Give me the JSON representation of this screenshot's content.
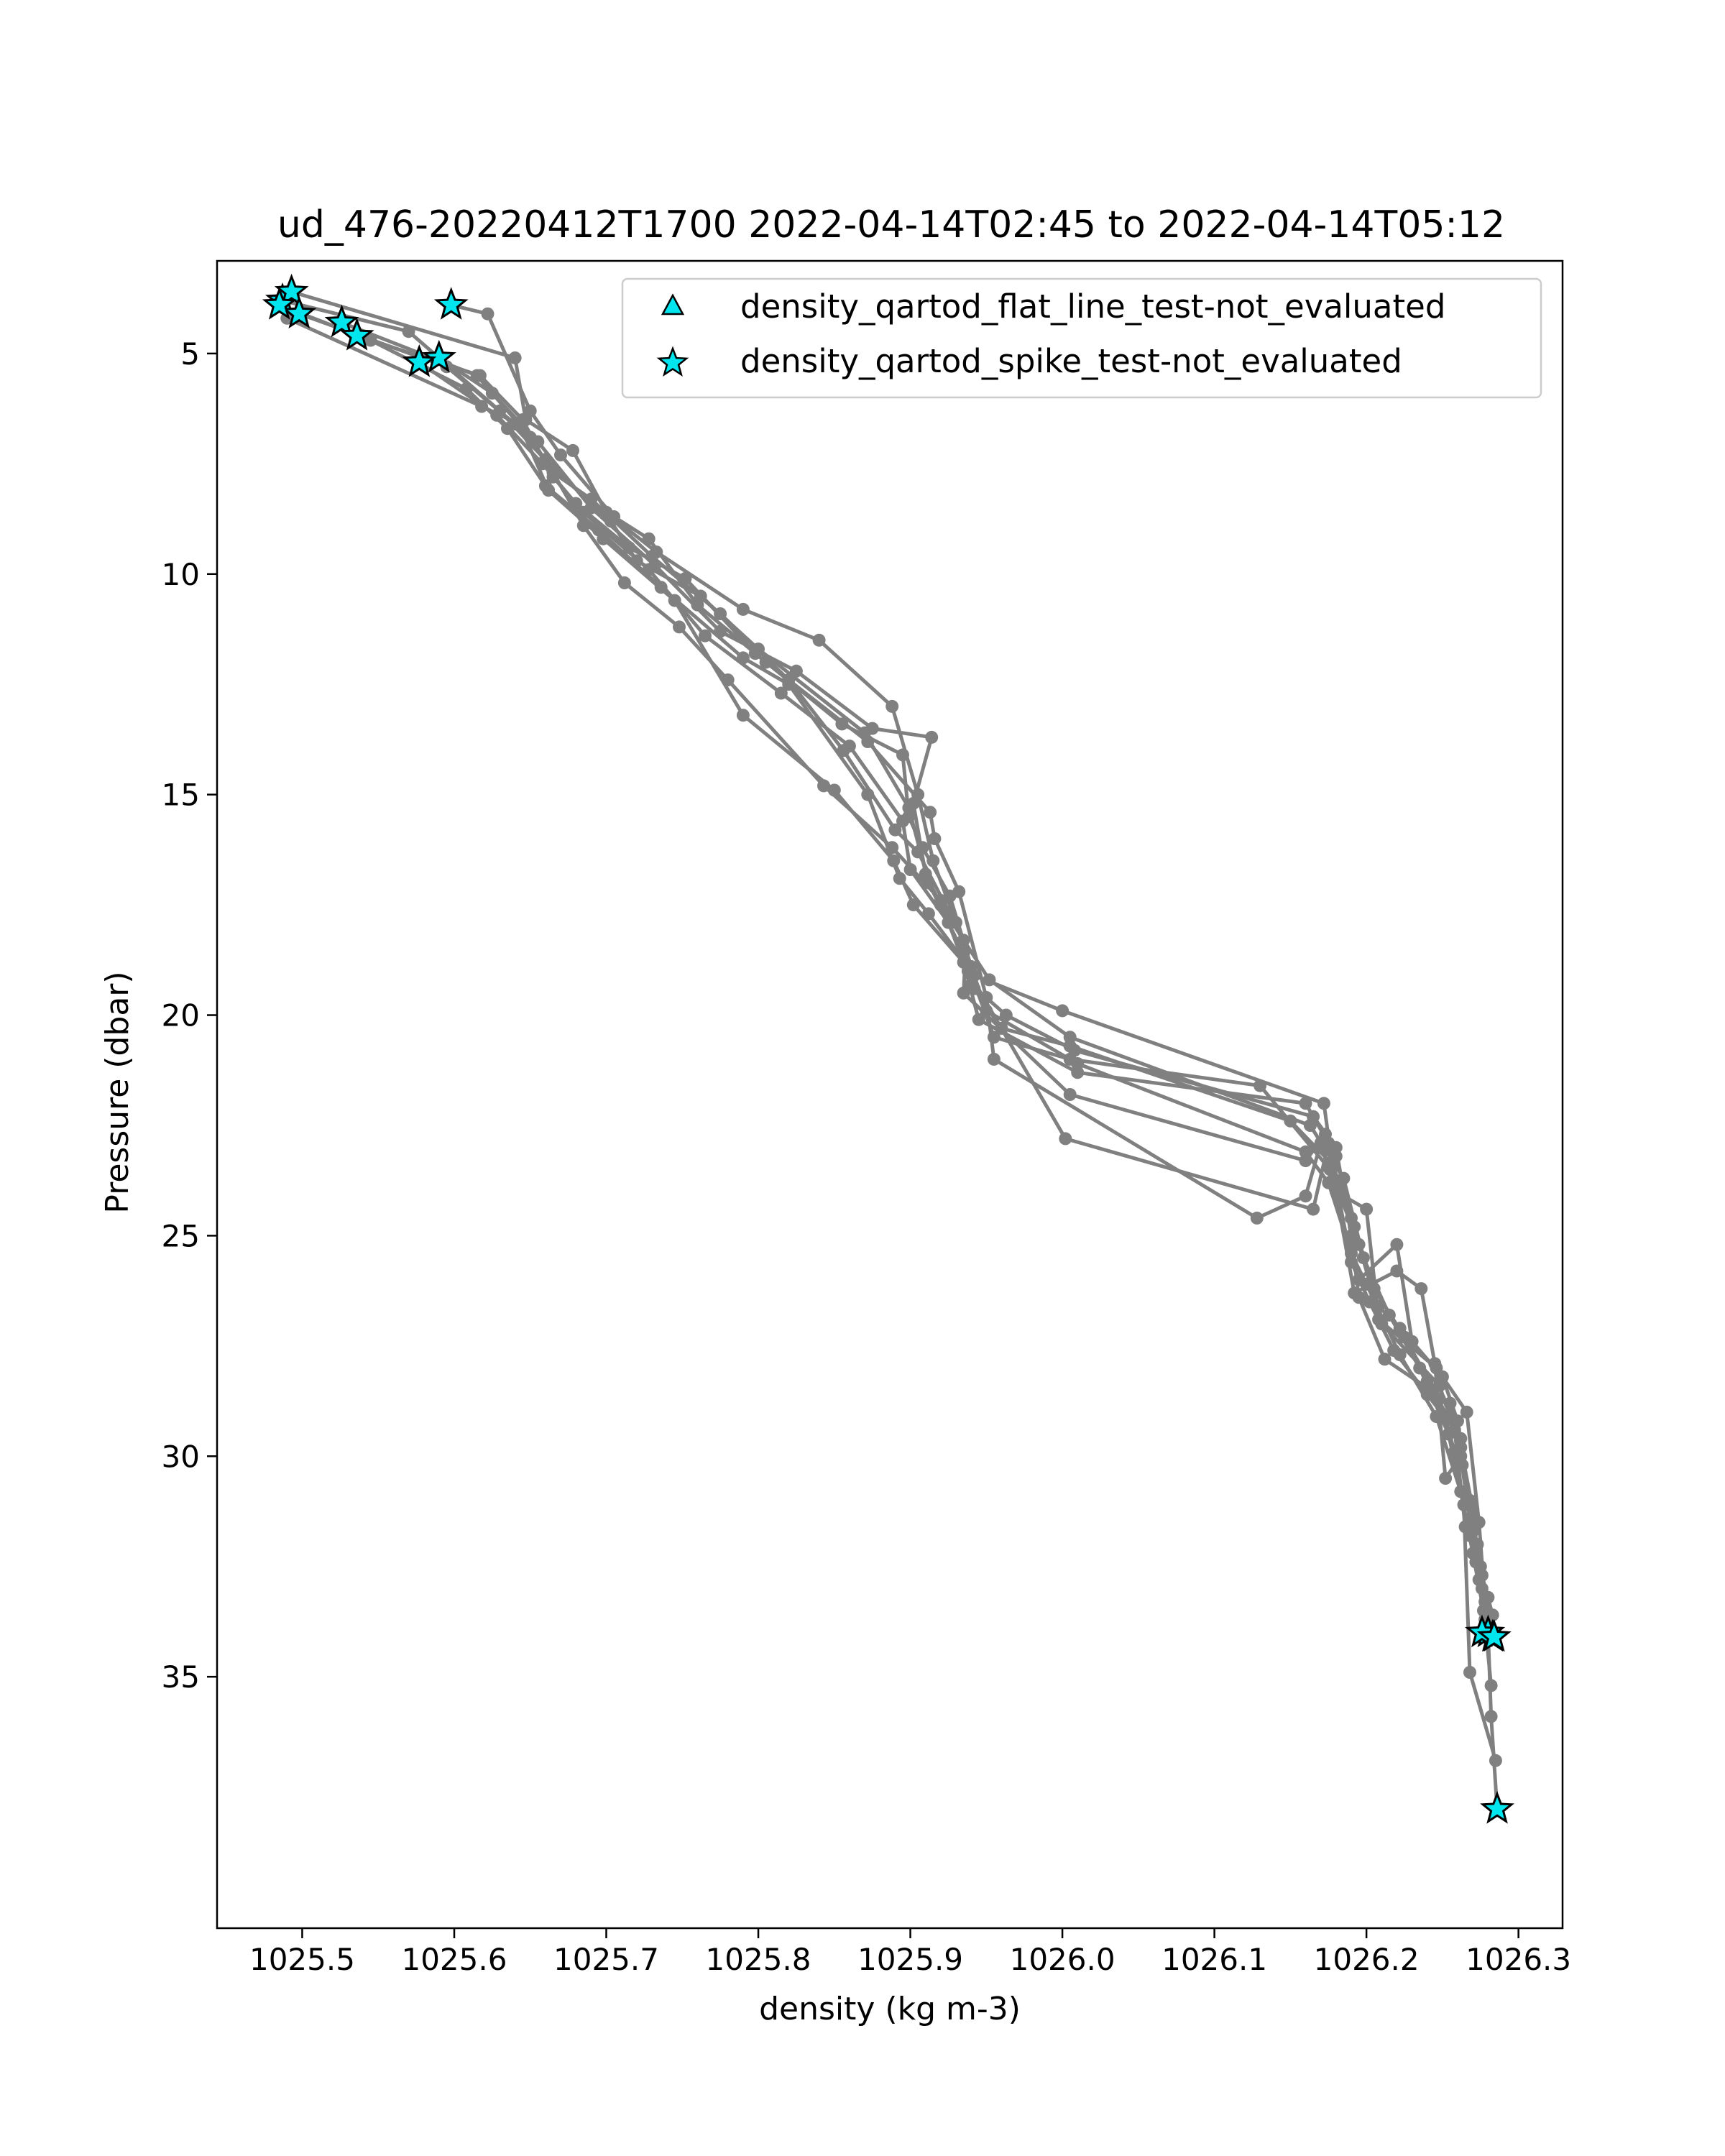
{
  "chart_data": {
    "type": "line",
    "title": "ud_476-20220412T1700 2022-04-14T02:45 to 2022-04-14T05:12",
    "xlabel": "density (kg m-3)",
    "ylabel": "Pressure (dbar)",
    "xlim": [
      1025.444,
      1026.329
    ],
    "ylim": [
      2.9,
      40.7
    ],
    "y_inverted": true,
    "grid": false,
    "legend_position": "top-right",
    "xticks": [
      "1025.5",
      "1025.6",
      "1025.7",
      "1025.8",
      "1025.9",
      "1026.0",
      "1026.1",
      "1026.2",
      "1026.3"
    ],
    "yticks": [
      "5",
      "10",
      "15",
      "20",
      "25",
      "30",
      "35"
    ],
    "profile_color": "#808080",
    "marker_color": "#00e5ee",
    "profiles": [
      {
        "points": [
          [
            1025.487,
            3.8
          ],
          [
            1025.57,
            4.5
          ],
          [
            1025.63,
            6.3
          ],
          [
            1025.665,
            7.6
          ],
          [
            1025.703,
            8.8
          ],
          [
            1025.72,
            9.7
          ],
          [
            1025.762,
            10.5
          ],
          [
            1025.8,
            11.7
          ],
          [
            1025.87,
            13.6
          ],
          [
            1025.899,
            15.3
          ],
          [
            1025.912,
            17.0
          ],
          [
            1025.935,
            18.6
          ],
          [
            1025.955,
            20.5
          ],
          [
            1026.005,
            21.0
          ],
          [
            1026.13,
            21.6
          ],
          [
            1026.176,
            23.5
          ],
          [
            1026.195,
            25.2
          ],
          [
            1026.21,
            27.0
          ],
          [
            1026.248,
            28.4
          ],
          [
            1026.262,
            29.8
          ],
          [
            1026.27,
            31.2
          ],
          [
            1026.274,
            32.8
          ],
          [
            1026.28,
            34.0
          ],
          [
            1026.282,
            35.9
          ],
          [
            1026.286,
            38.0
          ]
        ],
        "stars": [
          0,
          22,
          24
        ]
      },
      {
        "points": [
          [
            1025.493,
            3.6
          ],
          [
            1025.64,
            5.1
          ],
          [
            1025.647,
            6.5
          ],
          [
            1025.678,
            7.2
          ],
          [
            1025.7,
            8.6
          ],
          [
            1025.733,
            9.5
          ],
          [
            1025.79,
            10.8
          ],
          [
            1025.84,
            11.5
          ],
          [
            1025.888,
            13.0
          ],
          [
            1025.905,
            15.0
          ],
          [
            1025.915,
            16.5
          ],
          [
            1025.93,
            17.9
          ],
          [
            1025.942,
            19.1
          ],
          [
            1026.0,
            19.9
          ],
          [
            1026.172,
            22.0
          ],
          [
            1026.18,
            24.0
          ],
          [
            1026.2,
            24.4
          ],
          [
            1026.208,
            26.9
          ],
          [
            1026.246,
            28.0
          ],
          [
            1026.266,
            29.0
          ],
          [
            1026.274,
            31.5
          ],
          [
            1026.278,
            33.3
          ],
          [
            1026.283,
            34.1
          ]
        ],
        "stars": [
          0,
          22
        ]
      },
      {
        "points": [
          [
            1025.498,
            4.1
          ],
          [
            1025.595,
            5.3
          ],
          [
            1025.64,
            6.6
          ],
          [
            1025.66,
            7.4
          ],
          [
            1025.685,
            8.9
          ],
          [
            1025.712,
            10.2
          ],
          [
            1025.748,
            11.2
          ],
          [
            1025.78,
            12.4
          ],
          [
            1025.843,
            14.8
          ],
          [
            1025.888,
            16.2
          ],
          [
            1025.92,
            17.4
          ],
          [
            1025.94,
            19.3
          ],
          [
            1025.963,
            20.0
          ],
          [
            1026.008,
            20.8
          ],
          [
            1026.165,
            22.3
          ],
          [
            1026.18,
            23.0
          ],
          [
            1026.19,
            25.0
          ],
          [
            1026.195,
            26.4
          ],
          [
            1026.212,
            27.8
          ],
          [
            1026.255,
            28.8
          ],
          [
            1026.263,
            30.2
          ],
          [
            1026.27,
            31.7
          ],
          [
            1026.278,
            33.7
          ],
          [
            1026.276,
            34.0
          ]
        ],
        "stars": [
          0,
          23
        ]
      },
      {
        "points": [
          [
            1025.59,
            5.1
          ],
          [
            1025.625,
            5.9
          ],
          [
            1025.655,
            7.0
          ],
          [
            1025.69,
            8.5
          ],
          [
            1025.732,
            9.8
          ],
          [
            1025.775,
            11.3
          ],
          [
            1025.825,
            12.2
          ],
          [
            1025.875,
            13.5
          ],
          [
            1025.914,
            13.7
          ],
          [
            1025.902,
            15.2
          ],
          [
            1025.91,
            16.8
          ],
          [
            1025.92,
            17.5
          ],
          [
            1025.952,
            19.2
          ],
          [
            1026.005,
            20.5
          ],
          [
            1026.163,
            22.5
          ],
          [
            1026.185,
            23.7
          ],
          [
            1026.198,
            25.5
          ],
          [
            1026.215,
            26.8
          ],
          [
            1026.235,
            28.0
          ],
          [
            1026.254,
            29.5
          ],
          [
            1026.268,
            31.8
          ],
          [
            1026.276,
            33.0
          ],
          [
            1026.284,
            34.1
          ]
        ],
        "stars": [
          0,
          22
        ]
      },
      {
        "points": [
          [
            1025.598,
            3.9
          ],
          [
            1025.622,
            4.1
          ],
          [
            1025.65,
            6.3
          ],
          [
            1025.67,
            7.3
          ],
          [
            1025.705,
            8.7
          ],
          [
            1025.728,
            9.2
          ],
          [
            1025.76,
            10.7
          ],
          [
            1025.805,
            12.0
          ],
          [
            1025.872,
            13.8
          ],
          [
            1025.913,
            15.4
          ],
          [
            1025.916,
            16.0
          ],
          [
            1025.932,
            17.2
          ],
          [
            1025.95,
            19.6
          ],
          [
            1025.955,
            21.0
          ],
          [
            1026.128,
            24.6
          ],
          [
            1026.16,
            24.1
          ],
          [
            1026.17,
            22.9
          ],
          [
            1026.195,
            26.0
          ],
          [
            1026.22,
            25.2
          ],
          [
            1026.23,
            27.4
          ],
          [
            1026.25,
            28.2
          ],
          [
            1026.26,
            29.2
          ],
          [
            1026.268,
            31.0
          ],
          [
            1026.275,
            32.5
          ]
        ],
        "stars": [
          0
        ]
      },
      {
        "points": [
          [
            1025.485,
            3.9
          ],
          [
            1025.545,
            4.7
          ],
          [
            1025.608,
            5.8
          ],
          [
            1025.635,
            6.7
          ],
          [
            1025.66,
            8.0
          ],
          [
            1025.695,
            9.0
          ],
          [
            1025.736,
            10.3
          ],
          [
            1025.79,
            11.9
          ],
          [
            1025.82,
            12.5
          ],
          [
            1025.872,
            15.0
          ],
          [
            1025.893,
            16.9
          ],
          [
            1025.912,
            17.7
          ],
          [
            1025.936,
            18.8
          ],
          [
            1025.935,
            19.5
          ],
          [
            1026.005,
            21.8
          ],
          [
            1026.16,
            23.3
          ],
          [
            1026.173,
            22.7
          ],
          [
            1026.192,
            26.3
          ],
          [
            1026.22,
            25.8
          ],
          [
            1026.236,
            26.2
          ],
          [
            1026.245,
            27.9
          ],
          [
            1026.252,
            30.5
          ],
          [
            1026.262,
            30.0
          ],
          [
            1026.272,
            32.4
          ],
          [
            1026.28,
            33.2
          ]
        ],
        "stars": [
          0
        ]
      },
      {
        "points": [
          [
            1025.526,
            4.3
          ],
          [
            1025.615,
            5.5
          ],
          [
            1025.65,
            6.9
          ],
          [
            1025.665,
            7.7
          ],
          [
            1025.69,
            8.3
          ],
          [
            1025.73,
            9.6
          ],
          [
            1025.775,
            10.9
          ],
          [
            1025.82,
            12.4
          ],
          [
            1025.856,
            14.0
          ],
          [
            1025.89,
            15.8
          ],
          [
            1025.905,
            16.3
          ],
          [
            1025.935,
            18.3
          ],
          [
            1025.938,
            19.0
          ],
          [
            1026.002,
            22.8
          ],
          [
            1026.165,
            24.4
          ],
          [
            1026.175,
            22.9
          ],
          [
            1026.19,
            25.6
          ],
          [
            1026.202,
            26.5
          ],
          [
            1026.218,
            27.6
          ],
          [
            1026.24,
            28.6
          ],
          [
            1026.258,
            29.4
          ],
          [
            1026.265,
            31.6
          ],
          [
            1026.273,
            32.0
          ],
          [
            1026.282,
            35.2
          ]
        ],
        "stars": [
          0
        ]
      },
      {
        "points": [
          [
            1025.49,
            4.2
          ],
          [
            1025.618,
            6.2
          ],
          [
            1025.643,
            6.6
          ],
          [
            1025.662,
            8.1
          ],
          [
            1025.698,
            9.2
          ],
          [
            1025.745,
            10.6
          ],
          [
            1025.79,
            13.2
          ],
          [
            1025.85,
            14.9
          ],
          [
            1025.889,
            16.5
          ],
          [
            1025.902,
            17.5
          ],
          [
            1025.935,
            18.8
          ],
          [
            1025.945,
            20.1
          ],
          [
            1026.01,
            21.3
          ],
          [
            1026.16,
            22.0
          ],
          [
            1026.18,
            23.2
          ],
          [
            1026.192,
            24.8
          ],
          [
            1026.205,
            26.2
          ],
          [
            1026.225,
            27.3
          ],
          [
            1026.248,
            28.7
          ],
          [
            1026.258,
            29.9
          ],
          [
            1026.264,
            31.1
          ],
          [
            1026.268,
            34.9
          ],
          [
            1026.285,
            36.9
          ]
        ],
        "stars": []
      },
      {
        "points": [
          [
            1025.536,
            4.6
          ],
          [
            1025.617,
            5.5
          ],
          [
            1025.645,
            6.5
          ],
          [
            1025.665,
            7.8
          ],
          [
            1025.685,
            8.6
          ],
          [
            1025.728,
            9.9
          ],
          [
            1025.765,
            11.4
          ],
          [
            1025.815,
            12.7
          ],
          [
            1025.86,
            13.9
          ],
          [
            1025.895,
            15.6
          ],
          [
            1025.9,
            16.7
          ],
          [
            1025.925,
            17.9
          ],
          [
            1025.942,
            19.4
          ],
          [
            1025.96,
            20.3
          ],
          [
            1026.005,
            20.7
          ],
          [
            1026.15,
            22.4
          ],
          [
            1026.178,
            23.4
          ],
          [
            1026.19,
            24.6
          ],
          [
            1026.208,
            26.6
          ],
          [
            1026.222,
            27.1
          ],
          [
            1026.24,
            28.3
          ],
          [
            1026.262,
            29.6
          ],
          [
            1026.269,
            31.4
          ],
          [
            1026.276,
            32.7
          ],
          [
            1026.283,
            33.6
          ]
        ],
        "stars": [
          0
        ]
      },
      {
        "points": [
          [
            1025.577,
            5.2
          ],
          [
            1025.628,
            6.4
          ],
          [
            1025.658,
            7.5
          ],
          [
            1025.68,
            8.4
          ],
          [
            1025.715,
            9.4
          ],
          [
            1025.752,
            10.1
          ],
          [
            1025.798,
            11.8
          ],
          [
            1025.855,
            13.4
          ],
          [
            1025.895,
            14.1
          ],
          [
            1025.899,
            15.5
          ],
          [
            1025.908,
            16.2
          ],
          [
            1025.926,
            17.3
          ],
          [
            1025.94,
            18.9
          ],
          [
            1025.95,
            19.9
          ],
          [
            1026.01,
            21.1
          ],
          [
            1026.16,
            23.1
          ],
          [
            1026.175,
            23.8
          ],
          [
            1026.19,
            25.4
          ],
          [
            1026.2,
            26.1
          ],
          [
            1026.222,
            27.7
          ],
          [
            1026.246,
            29.1
          ],
          [
            1026.262,
            30.8
          ],
          [
            1026.27,
            32.2
          ],
          [
            1026.277,
            33.5
          ]
        ],
        "stars": [
          0
        ]
      }
    ],
    "legend": [
      {
        "label": "density_qartod_flat_line_test-not_evaluated",
        "marker": "triangle"
      },
      {
        "label": "density_qartod_spike_test-not_evaluated",
        "marker": "star"
      }
    ]
  }
}
